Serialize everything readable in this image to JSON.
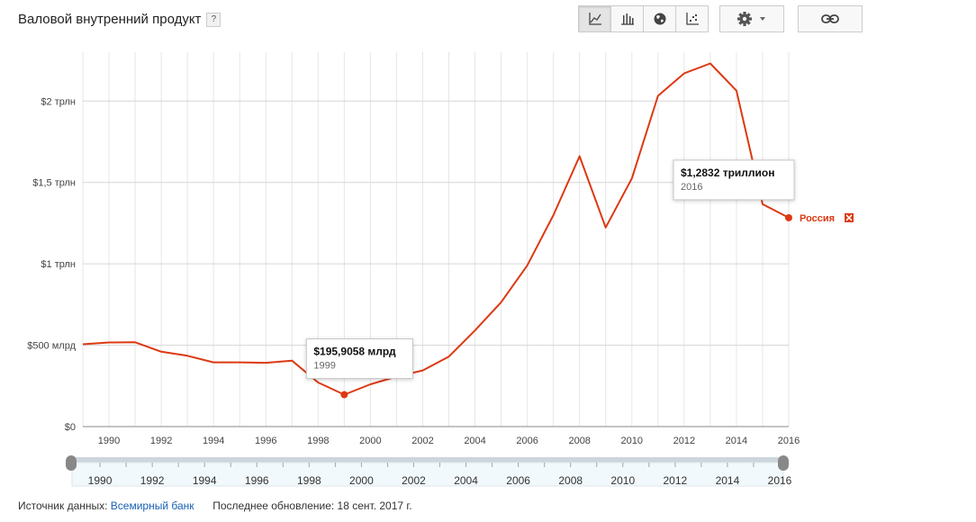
{
  "header": {
    "title": "Валовой внутренний продукт",
    "help_label": "?"
  },
  "toolbar": {
    "buttons": [
      {
        "icon": "line-chart-icon",
        "active": true
      },
      {
        "icon": "bar-chart-icon",
        "active": false
      },
      {
        "icon": "globe-icon",
        "active": false
      },
      {
        "icon": "scatter-plot-icon",
        "active": false
      }
    ],
    "settings_icon": "gear-icon",
    "link_icon": "link-icon"
  },
  "chart_data": {
    "type": "line",
    "title": "Валовой внутренний продукт",
    "xlim": [
      1989,
      2016
    ],
    "ylim": [
      0,
      2300
    ],
    "y_ticks": [
      {
        "value": 0,
        "label": "$0"
      },
      {
        "value": 500,
        "label": "$500 млрд"
      },
      {
        "value": 1000,
        "label": "$1 трлн"
      },
      {
        "value": 1500,
        "label": "$1,5 трлн"
      },
      {
        "value": 2000,
        "label": "$2 трлн"
      }
    ],
    "x_ticks": [
      1990,
      1992,
      1994,
      1996,
      1998,
      2000,
      2002,
      2004,
      2006,
      2008,
      2010,
      2012,
      2014,
      2016
    ],
    "grid": true,
    "series": [
      {
        "name": "Россия",
        "color": "#dc3912",
        "x": [
          1989,
          1990,
          1991,
          1992,
          1993,
          1994,
          1995,
          1996,
          1997,
          1998,
          1999,
          2000,
          2001,
          2002,
          2003,
          2004,
          2005,
          2006,
          2007,
          2008,
          2009,
          2010,
          2011,
          2012,
          2013,
          2014,
          2015,
          2016
        ],
        "y": [
          506,
          517,
          518,
          460,
          435,
          395,
          395,
          392,
          405,
          271,
          196,
          260,
          307,
          345,
          430,
          591,
          764,
          990,
          1300,
          1661,
          1223,
          1525,
          2032,
          2170,
          2231,
          2064,
          1366,
          1283
        ]
      }
    ],
    "tooltips": [
      {
        "x": 1999,
        "y": 196,
        "value": "$195,9058 млрд",
        "year": "1999"
      },
      {
        "x": 2016,
        "y": 1283,
        "value": "$1,2832 триллион",
        "year": "2016"
      }
    ],
    "legend_placement": "right, at line end",
    "range_slider": {
      "ticks": [
        1990,
        1992,
        1994,
        1996,
        1998,
        2000,
        2002,
        2004,
        2006,
        2008,
        2010,
        2012,
        2014,
        2016
      ]
    }
  },
  "footer": {
    "source_label": "Источник данных:",
    "source_link": "Всемирный банк",
    "updated": "Последнее обновление: 18 сент. 2017 г."
  }
}
